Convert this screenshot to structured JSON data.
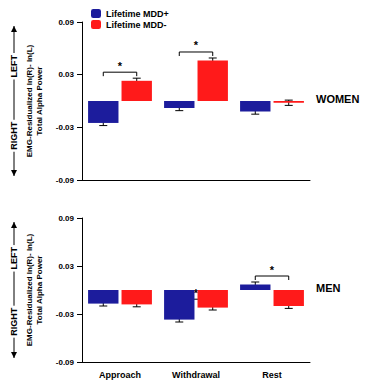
{
  "chart_data": [
    {
      "type": "bar",
      "title": "WOMEN",
      "y_label": "EMG-Residualized ln(R)- ln(L)\nTotal Alpha Power",
      "y_direction": {
        "low": "RIGHT",
        "high": "LEFT"
      },
      "categories": [
        "Approach",
        "Withdrawal",
        "Rest"
      ],
      "series": [
        {
          "name": "Lifetime MDD+",
          "color": "#1c1c9c",
          "values": [
            -0.025,
            -0.008,
            -0.012
          ],
          "errors": [
            0.003,
            0.003,
            0.003
          ]
        },
        {
          "name": "Lifetime MDD-",
          "color": "#ff1a1a",
          "values": [
            0.023,
            0.046,
            -0.002
          ],
          "errors": [
            0.003,
            0.003,
            0.003
          ]
        }
      ],
      "ylim": [
        -0.09,
        0.09
      ],
      "yticks": [
        -0.09,
        -0.03,
        0.03,
        0.09
      ],
      "legend": "upper left",
      "tick_labels": "y",
      "annotations": [
        {
          "category": "Approach",
          "text": "*"
        },
        {
          "category": "Withdrawal",
          "text": "*"
        }
      ]
    },
    {
      "type": "bar",
      "title": "MEN",
      "y_label": "EMG-Residualized ln(R)- ln(L)\nTotal Alpha Power",
      "y_direction": {
        "low": "RIGHT",
        "high": "LEFT"
      },
      "categories": [
        "Approach",
        "Withdrawal",
        "Rest"
      ],
      "series": [
        {
          "name": "Lifetime MDD+",
          "color": "#1c1c9c",
          "values": [
            -0.017,
            -0.037,
            0.007
          ],
          "errors": [
            0.003,
            0.003,
            0.003
          ]
        },
        {
          "name": "Lifetime MDD-",
          "color": "#ff1a1a",
          "values": [
            -0.018,
            -0.022,
            -0.02
          ],
          "errors": [
            0.003,
            0.003,
            0.003
          ]
        }
      ],
      "ylim": [
        -0.09,
        0.09
      ],
      "yticks": [
        -0.09,
        -0.03,
        0.03,
        0.09
      ],
      "annotations": [
        {
          "category": "Withdrawal",
          "text": "*"
        },
        {
          "category": "Rest",
          "text": "*"
        }
      ]
    }
  ]
}
